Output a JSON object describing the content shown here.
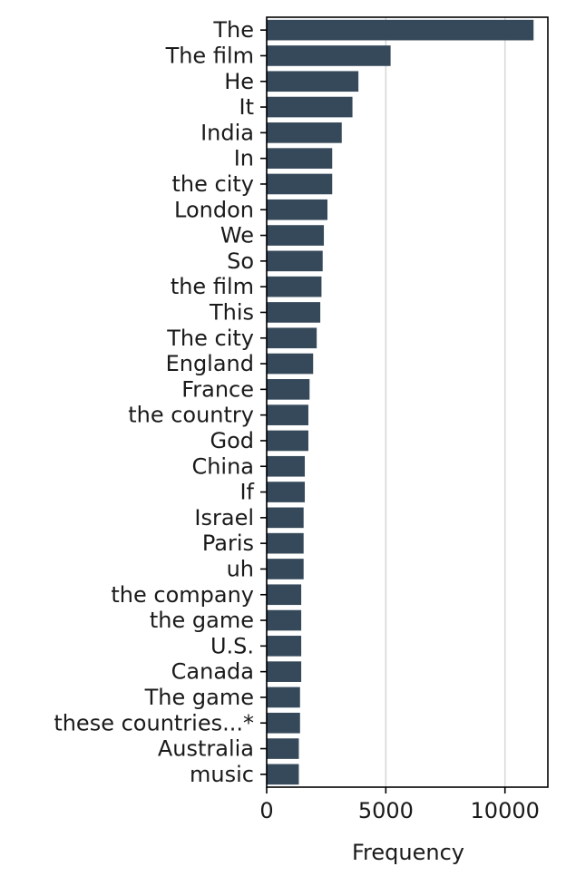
{
  "chart_data": {
    "type": "bar",
    "orientation": "horizontal",
    "categories": [
      "The",
      "The film",
      "He",
      "It",
      "India",
      "In",
      "the city",
      "London",
      "We",
      "So",
      "the film",
      "This",
      "The city",
      "England",
      "France",
      "the country",
      "God",
      "China",
      "If",
      "Israel",
      "Paris",
      "uh",
      "the company",
      "the game",
      "U.S.",
      "Canada",
      "The game",
      "these countries...*",
      "Australia",
      "music"
    ],
    "values": [
      11200,
      5200,
      3850,
      3600,
      3150,
      2750,
      2750,
      2550,
      2400,
      2350,
      2300,
      2250,
      2100,
      1950,
      1800,
      1750,
      1750,
      1600,
      1600,
      1550,
      1550,
      1550,
      1450,
      1450,
      1450,
      1450,
      1400,
      1400,
      1350,
      1350
    ],
    "xlabel": "Frequency",
    "ylabel": "",
    "xlim": [
      0,
      11800
    ],
    "xticks": [
      0,
      5000,
      10000
    ],
    "xtick_labels": [
      "0",
      "5000",
      "10000"
    ],
    "grid": "vertical",
    "bar_color": "#36495a",
    "grid_color": "#d9d9d9"
  }
}
